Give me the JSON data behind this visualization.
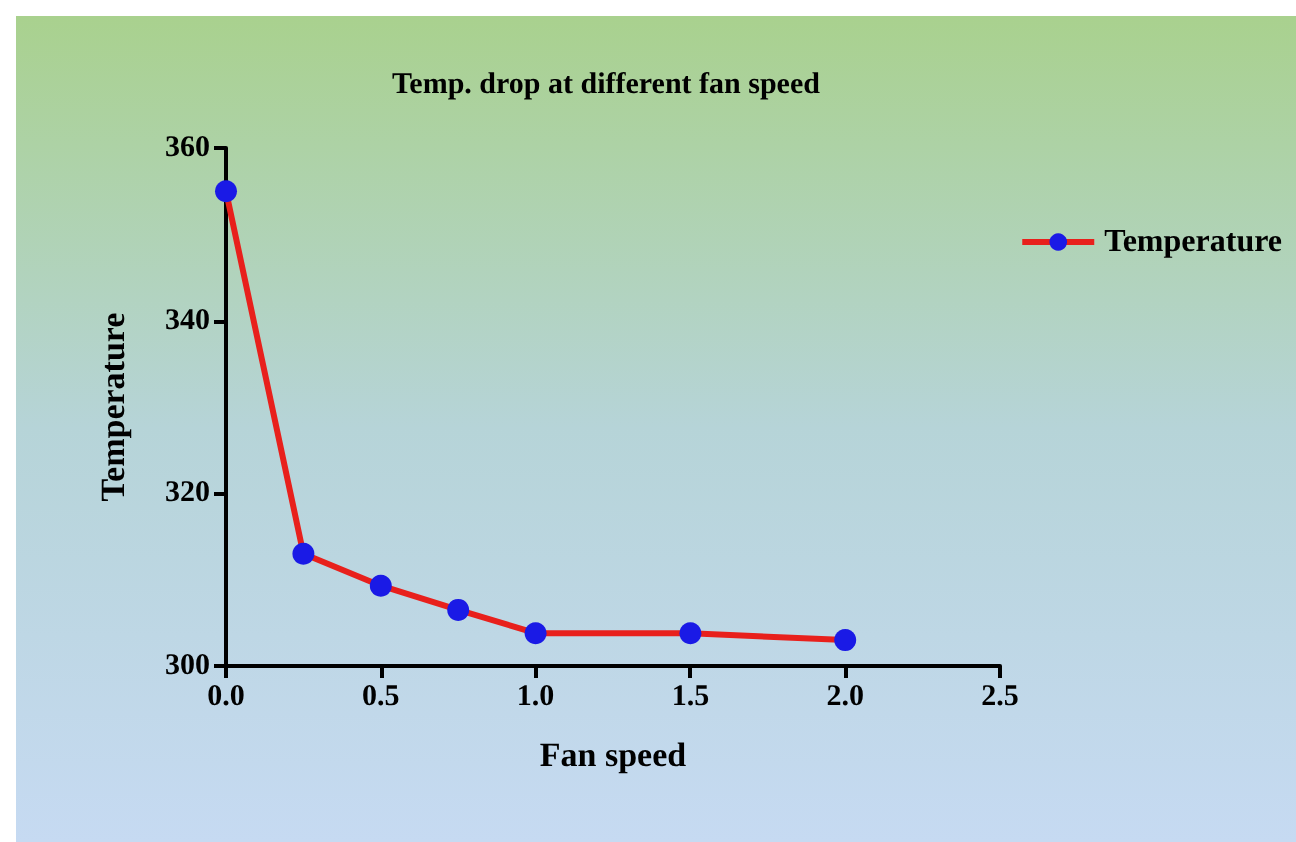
{
  "chart_data": {
    "type": "line",
    "title": "Temp. drop at different fan speed",
    "xlabel": "Fan speed",
    "ylabel": "Temperature",
    "x": [
      0,
      0.25,
      0.5,
      0.75,
      1.0,
      1.5,
      2.0
    ],
    "series": [
      {
        "name": "Temperature",
        "color": "#e8201c",
        "values": [
          355,
          313,
          309.3,
          306.5,
          303.8,
          303.8,
          303
        ]
      }
    ],
    "xlim": [
      0,
      2.5
    ],
    "xticks": [
      {
        "value": 0,
        "label": "0.0"
      },
      {
        "value": 0.5,
        "label": "0.5"
      },
      {
        "value": 1,
        "label": "1.0"
      },
      {
        "value": 1.5,
        "label": "1.5"
      },
      {
        "value": 2,
        "label": "2.0"
      },
      {
        "value": 2.5,
        "label": "2.5"
      }
    ],
    "ylim": [
      300,
      360
    ],
    "yticks": [
      300,
      320,
      340,
      360
    ],
    "grid": false,
    "legend": "top right",
    "marker": "circle",
    "line_style": "solid"
  }
}
